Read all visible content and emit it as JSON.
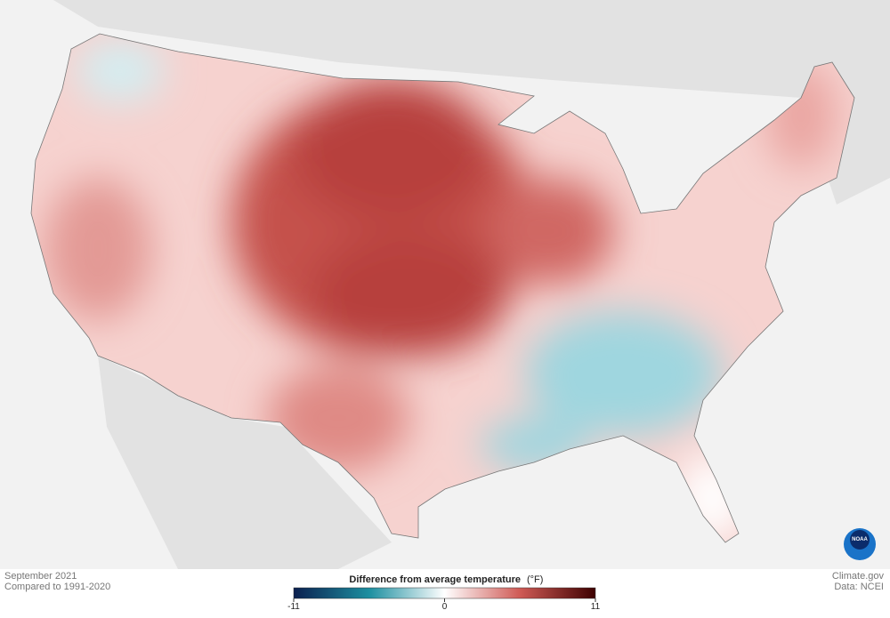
{
  "footer": {
    "date": "September 2021",
    "baseline": "Compared to 1991-2020",
    "credit": "Climate.gov",
    "source": "Data: NCEI"
  },
  "legend": {
    "title": "Difference from average temperature",
    "unit": "(°F)",
    "range": [
      -11,
      11
    ],
    "ticks": [
      -11,
      0,
      11
    ]
  },
  "logo": "NOAA"
}
